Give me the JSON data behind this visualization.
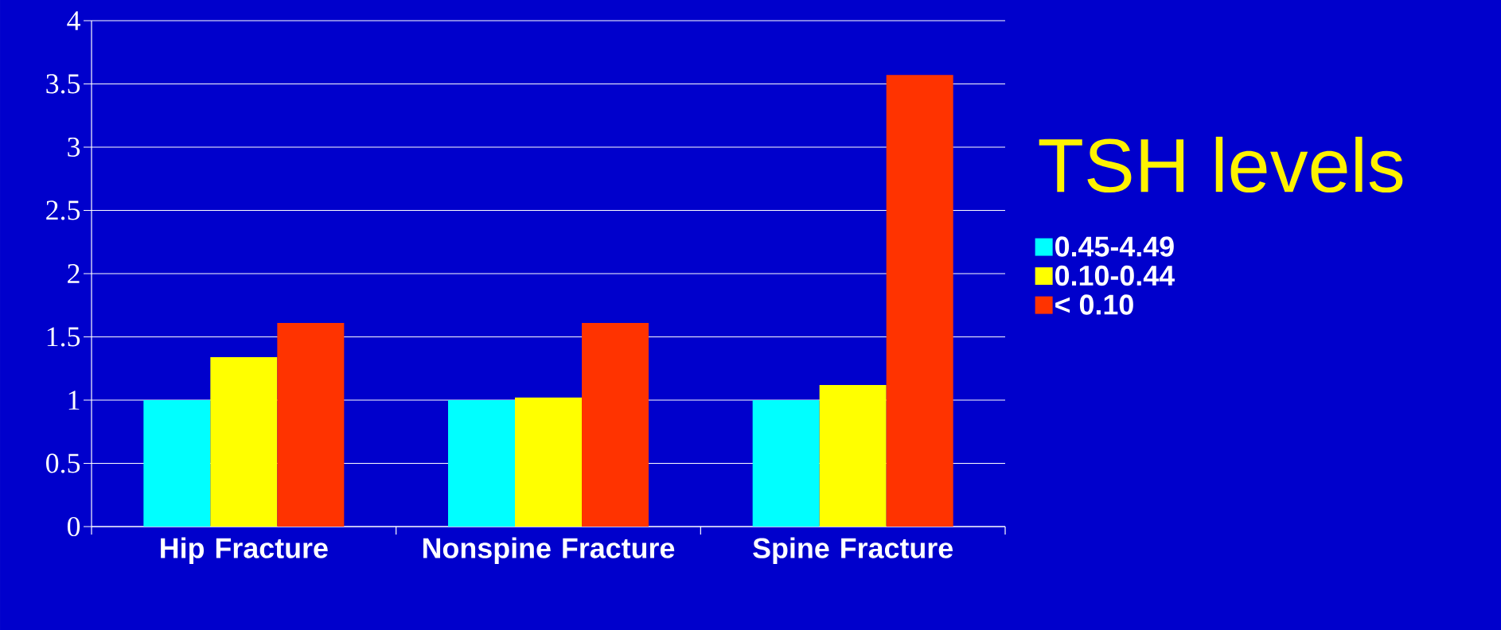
{
  "chart_data": {
    "type": "bar",
    "legend_title": "TSH levels",
    "categories": [
      "Hip Fracture",
      "Nonspine Fracture",
      "Spine Fracture"
    ],
    "series": [
      {
        "name": "0.45-4.49",
        "color": "#00ffff",
        "values": [
          1.0,
          1.0,
          1.0
        ]
      },
      {
        "name": "0.10-0.44",
        "color": "#ffff00",
        "values": [
          1.34,
          1.02,
          1.12
        ]
      },
      {
        "name": "< 0.10",
        "color": "#ff3300",
        "values": [
          1.61,
          1.61,
          3.57
        ]
      }
    ],
    "ylim": [
      0,
      4
    ],
    "yticks": [
      0,
      0.5,
      1,
      1.5,
      2,
      2.5,
      3,
      3.5,
      4
    ],
    "grid": "y",
    "legend": "right"
  }
}
